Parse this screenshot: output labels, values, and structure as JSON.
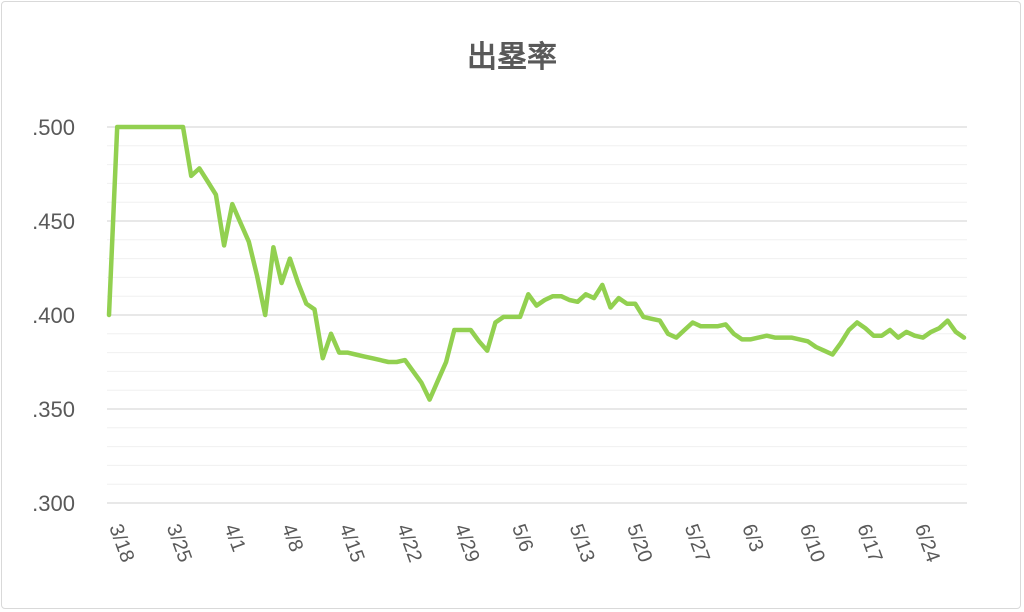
{
  "chart_data": {
    "type": "line",
    "title": "出塁率",
    "xlabel": "",
    "ylabel": "",
    "ylim": [
      0.3,
      0.5
    ],
    "y_ticks": [
      ".300",
      ".350",
      ".400",
      ".450",
      ".500"
    ],
    "y_tick_values": [
      0.3,
      0.35,
      0.4,
      0.45,
      0.5
    ],
    "x_tick_labels": [
      "3/18",
      "3/25",
      "4/1",
      "4/8",
      "4/15",
      "4/22",
      "4/29",
      "5/6",
      "5/13",
      "5/20",
      "5/27",
      "6/3",
      "6/10",
      "6/17",
      "6/24"
    ],
    "grid": true,
    "legend": "none",
    "line_color": "#92d050",
    "series": [
      {
        "values": [
          0.4,
          0.5,
          0.5,
          0.5,
          0.5,
          0.5,
          0.5,
          0.5,
          0.5,
          0.5,
          0.474,
          0.478,
          0.471,
          0.464,
          0.437,
          0.459,
          0.449,
          0.439,
          0.421,
          0.4,
          0.436,
          0.417,
          0.43,
          0.417,
          0.406,
          0.403,
          0.377,
          0.39,
          0.38,
          0.38,
          0.379,
          0.378,
          0.377,
          0.376,
          0.375,
          0.375,
          0.376,
          0.37,
          0.364,
          0.355,
          0.365,
          0.375,
          0.392,
          0.392,
          0.392,
          0.386,
          0.381,
          0.396,
          0.399,
          0.399,
          0.399,
          0.411,
          0.405,
          0.408,
          0.41,
          0.41,
          0.408,
          0.407,
          0.411,
          0.409,
          0.416,
          0.404,
          0.409,
          0.406,
          0.406,
          0.399,
          0.398,
          0.397,
          0.39,
          0.388,
          0.392,
          0.396,
          0.394,
          0.394,
          0.394,
          0.395,
          0.39,
          0.387,
          0.387,
          0.388,
          0.389,
          0.388,
          0.388,
          0.388,
          0.387,
          0.386,
          0.383,
          0.381,
          0.379,
          0.385,
          0.392,
          0.396,
          0.393,
          0.389,
          0.389,
          0.392,
          0.388,
          0.391,
          0.389,
          0.388,
          0.391,
          0.393,
          0.397,
          0.391,
          0.388
        ]
      }
    ]
  }
}
